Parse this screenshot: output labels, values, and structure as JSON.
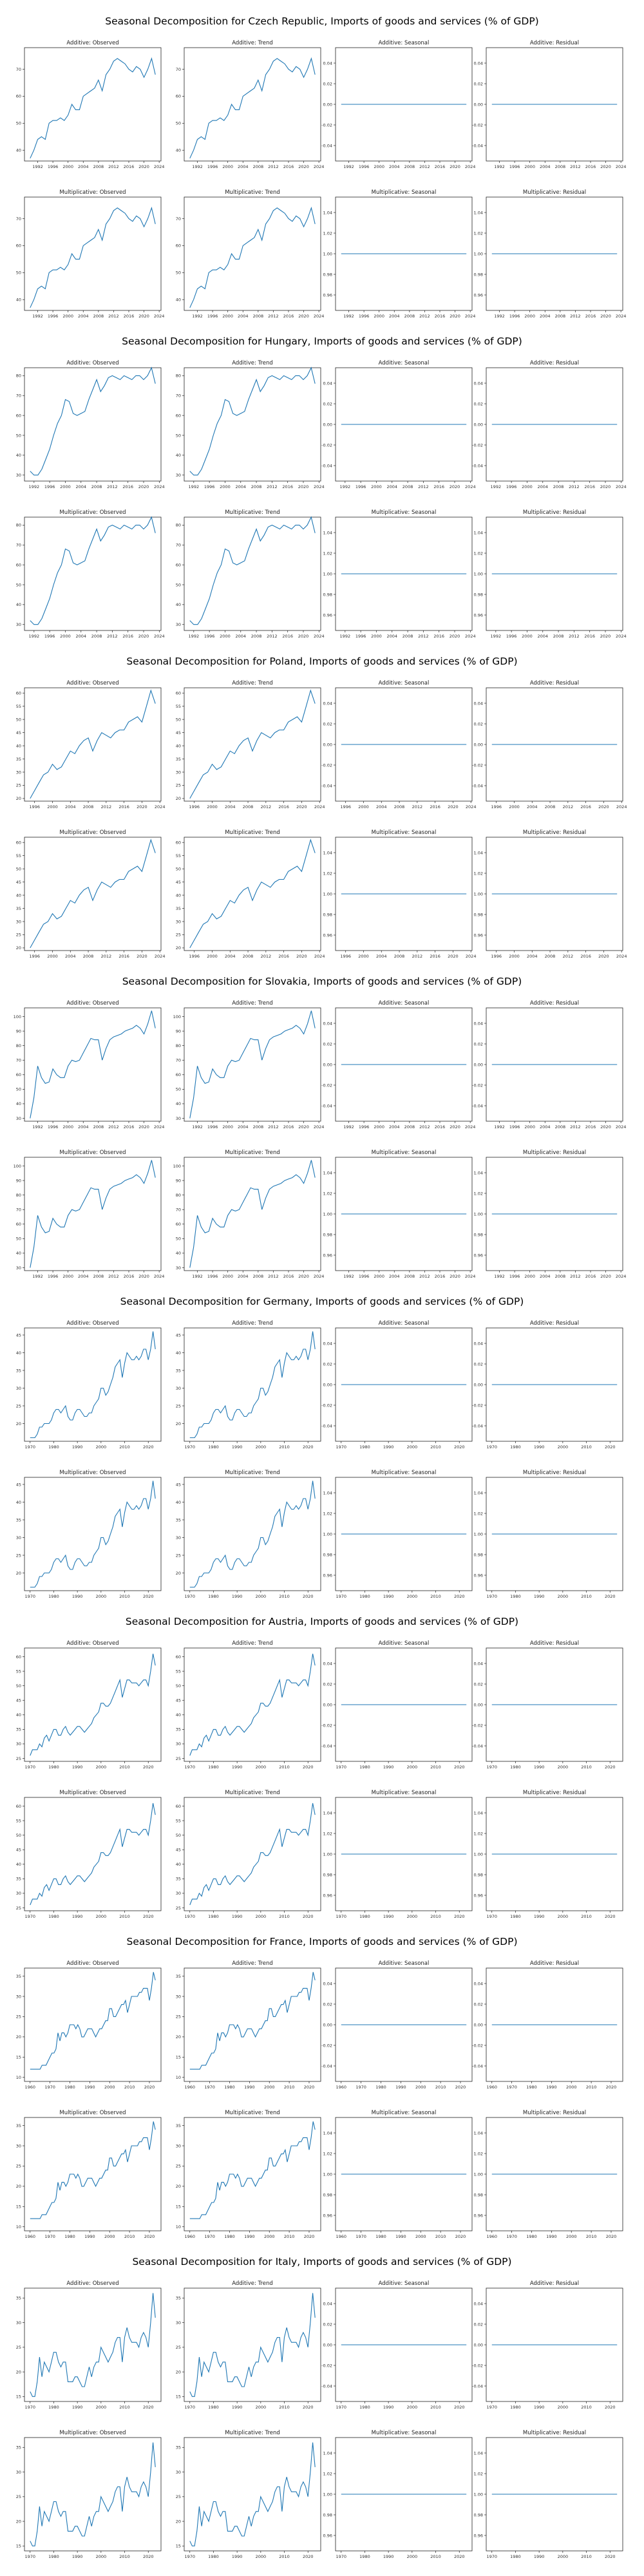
{
  "figure_title_template": "Seasonal Decomposition for {country}, Imports of goods and services (% of GDP)",
  "panel_titles": [
    "Additive: Observed",
    "Additive: Trend",
    "Additive: Seasonal",
    "Additive: Residual",
    "Multiplicative: Observed",
    "Multiplicative: Trend",
    "Multiplicative: Seasonal",
    "Multiplicative: Residual"
  ],
  "constant_panels": {
    "additive": {
      "value": 0.0,
      "ylim": [
        -0.055,
        0.055
      ],
      "yticks": [
        "-0.04",
        "-0.02",
        "0.00",
        "0.02",
        "0.04"
      ],
      "ytick_values": [
        -0.04,
        -0.02,
        0.0,
        0.02,
        0.04
      ]
    },
    "multiplicative": {
      "value": 1.0,
      "ylim": [
        0.945,
        1.055
      ],
      "yticks": [
        "0.96",
        "0.98",
        "1.00",
        "1.02",
        "1.04"
      ],
      "ytick_values": [
        0.96,
        0.98,
        1.0,
        1.02,
        1.04
      ]
    }
  },
  "chart_data": [
    {
      "type": "line",
      "country": "Czech Republic",
      "title": "Seasonal Decomposition for Czech Republic, Imports of goods and services (% of GDP)",
      "x_start": 1990,
      "x_end": 2023,
      "xticks": [
        1992,
        1996,
        2000,
        2004,
        2008,
        2012,
        2016,
        2020,
        2024
      ],
      "yticks": [
        40,
        50,
        60,
        70
      ],
      "ylim": [
        36,
        78
      ],
      "observed": [
        37,
        40,
        44,
        45,
        44,
        50,
        51,
        51,
        52,
        51,
        53,
        57,
        55,
        55,
        60,
        61,
        62,
        63,
        66,
        62,
        68,
        70,
        73,
        74,
        73,
        72,
        70,
        69,
        71,
        70,
        67,
        70,
        74,
        68
      ]
    },
    {
      "type": "line",
      "country": "Hungary",
      "title": "Seasonal Decomposition for Hungary, Imports of goods and services (% of GDP)",
      "x_start": 1991,
      "x_end": 2023,
      "xticks": [
        1992,
        1996,
        2000,
        2004,
        2008,
        2012,
        2016,
        2020,
        2024
      ],
      "yticks": [
        30,
        40,
        50,
        60,
        70,
        80
      ],
      "ylim": [
        27,
        84
      ],
      "observed": [
        32,
        30,
        30,
        33,
        38,
        43,
        50,
        56,
        60,
        68,
        67,
        61,
        60,
        61,
        62,
        68,
        73,
        78,
        72,
        75,
        79,
        80,
        79,
        78,
        80,
        79,
        78,
        80,
        80,
        78,
        80,
        84,
        76
      ]
    },
    {
      "type": "line",
      "country": "Poland",
      "title": "Seasonal Decomposition for Poland, Imports of goods and services (% of GDP)",
      "x_start": 1995,
      "x_end": 2023,
      "xticks": [
        1996,
        2000,
        2004,
        2008,
        2012,
        2016,
        2020,
        2024
      ],
      "yticks": [
        20,
        25,
        30,
        35,
        40,
        45,
        50,
        55,
        60
      ],
      "ylim": [
        19,
        62
      ],
      "observed": [
        20,
        23,
        26,
        29,
        30,
        33,
        31,
        32,
        35,
        38,
        37,
        40,
        42,
        43,
        38,
        42,
        45,
        44,
        43,
        45,
        46,
        46,
        49,
        50,
        51,
        49,
        55,
        61,
        56
      ]
    },
    {
      "type": "line",
      "country": "Slovakia",
      "title": "Seasonal Decomposition for Slovakia, Imports of goods and services (% of GDP)",
      "x_start": 1990,
      "x_end": 2023,
      "xticks": [
        1992,
        1996,
        2000,
        2004,
        2008,
        2012,
        2016,
        2020,
        2024
      ],
      "yticks": [
        30,
        40,
        50,
        60,
        70,
        80,
        90,
        100
      ],
      "ylim": [
        28,
        106
      ],
      "observed": [
        30,
        44,
        66,
        58,
        54,
        55,
        64,
        60,
        58,
        58,
        66,
        70,
        69,
        70,
        75,
        80,
        85,
        84,
        84,
        70,
        78,
        84,
        86,
        87,
        88,
        90,
        91,
        92,
        94,
        92,
        88,
        95,
        104,
        92
      ]
    },
    {
      "type": "line",
      "country": "Germany",
      "title": "Seasonal Decomposition for Germany, Imports of goods and services (% of GDP)",
      "x_start": 1970,
      "x_end": 2023,
      "xticks": [
        1970,
        1980,
        1990,
        2000,
        2010,
        2020
      ],
      "yticks": [
        20,
        25,
        30,
        35,
        40,
        45
      ],
      "ylim": [
        15,
        47
      ],
      "observed": [
        16,
        16,
        16,
        17,
        19,
        19,
        20,
        20,
        20,
        21,
        23,
        24,
        24,
        23,
        24,
        25,
        22,
        21,
        21,
        23,
        24,
        24,
        23,
        22,
        22,
        23,
        23,
        25,
        26,
        27,
        30,
        30,
        28,
        29,
        31,
        33,
        36,
        37,
        38,
        33,
        37,
        40,
        39,
        38,
        38,
        39,
        38,
        39,
        41,
        41,
        38,
        41,
        46,
        41
      ]
    },
    {
      "type": "line",
      "country": "Austria",
      "title": "Seasonal Decomposition for Austria, Imports of goods and services (% of GDP)",
      "x_start": 1970,
      "x_end": 2023,
      "xticks": [
        1970,
        1980,
        1990,
        2000,
        2010,
        2020
      ],
      "yticks": [
        25,
        30,
        35,
        40,
        45,
        50,
        55,
        60
      ],
      "ylim": [
        24,
        63
      ],
      "observed": [
        26,
        28,
        28,
        28,
        30,
        29,
        32,
        33,
        31,
        33,
        35,
        35,
        33,
        33,
        35,
        36,
        34,
        33,
        34,
        35,
        36,
        36,
        35,
        34,
        35,
        36,
        37,
        39,
        40,
        41,
        44,
        44,
        43,
        43,
        44,
        46,
        48,
        50,
        52,
        46,
        49,
        52,
        52,
        51,
        51,
        51,
        50,
        51,
        52,
        52,
        50,
        55,
        61,
        57
      ]
    },
    {
      "type": "line",
      "country": "France",
      "title": "Seasonal Decomposition for France, Imports of goods and services (% of GDP)",
      "x_start": 1960,
      "x_end": 2023,
      "xticks": [
        1960,
        1970,
        1980,
        1990,
        2000,
        2010,
        2020
      ],
      "yticks": [
        10,
        15,
        20,
        25,
        30,
        35
      ],
      "ylim": [
        9,
        37
      ],
      "observed": [
        12,
        12,
        12,
        12,
        12,
        12,
        13,
        13,
        13,
        14,
        15,
        16,
        16,
        17,
        21,
        19,
        21,
        21,
        20,
        21,
        23,
        23,
        23,
        22,
        23,
        22,
        20,
        20,
        21,
        22,
        22,
        22,
        21,
        20,
        21,
        22,
        22,
        23,
        24,
        24,
        27,
        27,
        25,
        25,
        26,
        27,
        28,
        28,
        29,
        26,
        28,
        30,
        30,
        30,
        30,
        31,
        31,
        32,
        32,
        32,
        29,
        32,
        36,
        34
      ]
    },
    {
      "type": "line",
      "country": "Italy",
      "title": "Seasonal Decomposition for Italy, Imports of goods and services (% of GDP)",
      "x_start": 1970,
      "x_end": 2023,
      "xticks": [
        1970,
        1980,
        1990,
        2000,
        2010,
        2020
      ],
      "yticks": [
        15,
        20,
        25,
        30,
        35
      ],
      "ylim": [
        14,
        37
      ],
      "observed": [
        16,
        15,
        15,
        18,
        23,
        19,
        22,
        21,
        20,
        22,
        24,
        24,
        22,
        21,
        22,
        22,
        18,
        18,
        18,
        19,
        19,
        18,
        17,
        17,
        19,
        21,
        19,
        21,
        22,
        22,
        25,
        24,
        23,
        22,
        23,
        24,
        26,
        27,
        27,
        22,
        27,
        29,
        27,
        26,
        26,
        26,
        25,
        27,
        28,
        27,
        25,
        30,
        36,
        31
      ]
    }
  ]
}
